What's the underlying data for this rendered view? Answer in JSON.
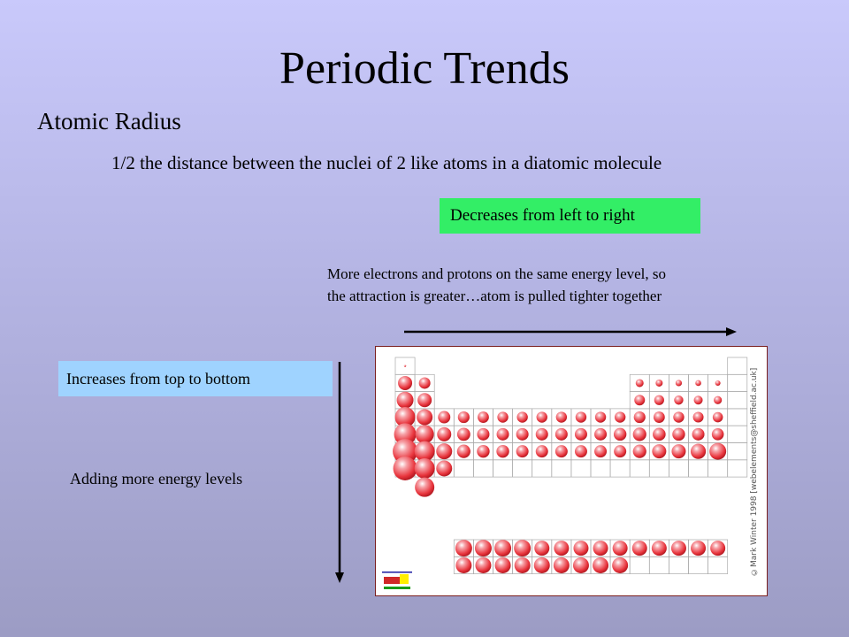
{
  "slide": {
    "title": "Periodic Trends",
    "subtitle": "Atomic Radius",
    "definition": "1/2 the distance between the nuclei of 2 like atoms in a diatomic molecule",
    "period_trend": {
      "label": "Decreases from left to right",
      "label_bg": "#33ee66",
      "explanation_line1": "More electrons and protons on the same energy level, so",
      "explanation_line2": "the attraction is greater…atom is pulled tighter together"
    },
    "group_trend": {
      "label": "Increases from top to bottom",
      "label_bg": "#9fd3ff",
      "explanation": "Adding more energy levels"
    },
    "table_image": {
      "credit": "©Mark Winter 1998 [webelements@sheffield.ac.uk]",
      "sphere_color": "#e8343c"
    }
  }
}
